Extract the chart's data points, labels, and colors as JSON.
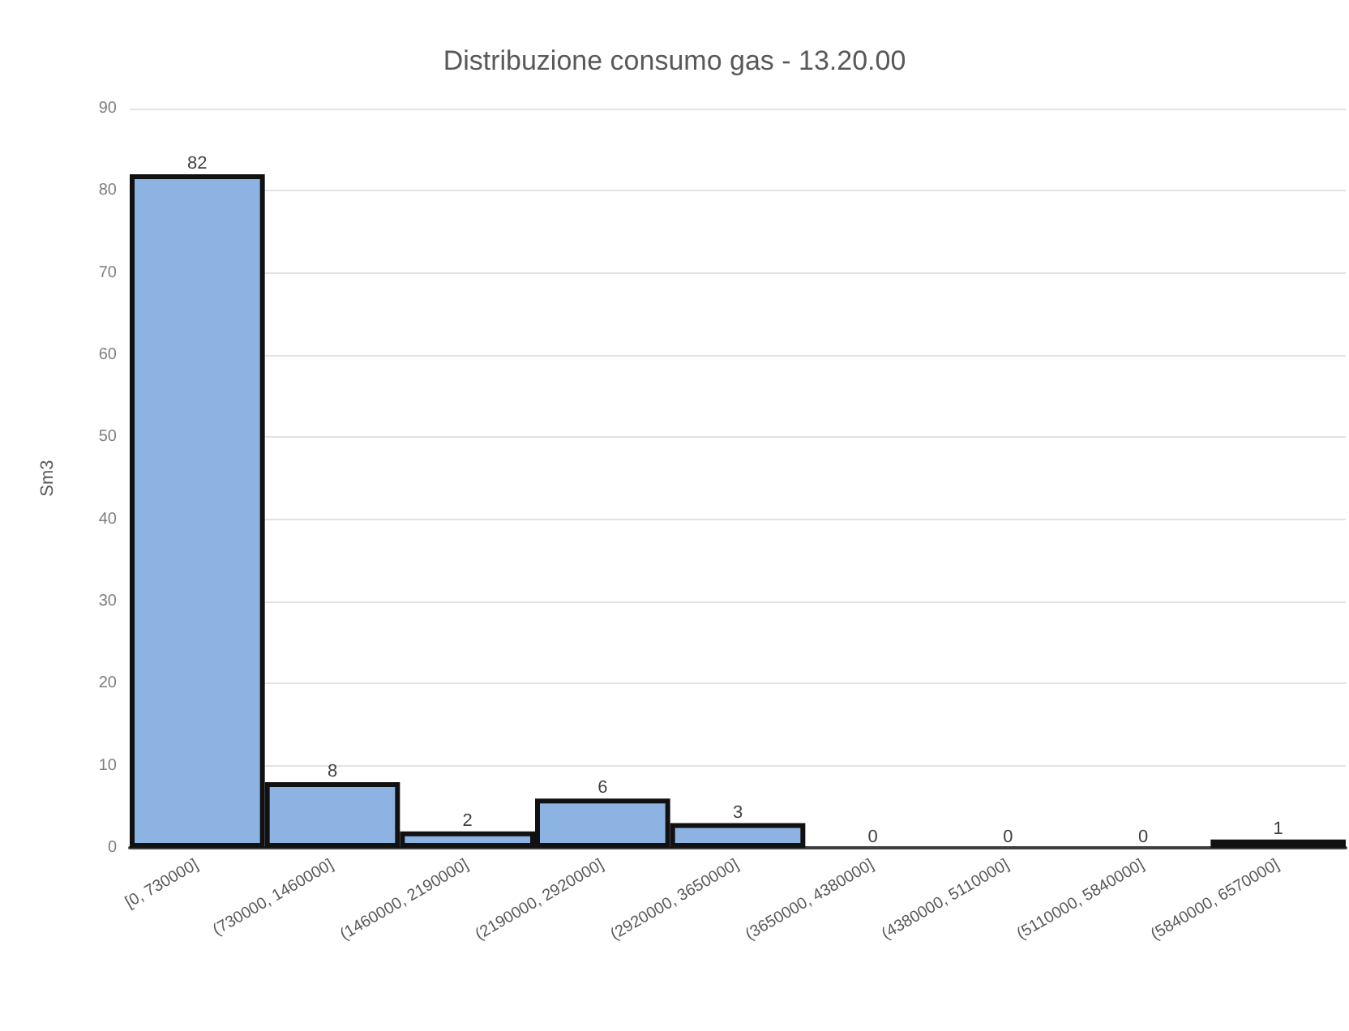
{
  "chart_data": {
    "type": "bar",
    "title": "Distribuzione consumo gas - 13.20.00",
    "ylabel": "Sm3",
    "categories": [
      "[0, 730000]",
      "(730000, 1460000]",
      "(1460000, 2190000]",
      "(2190000, 2920000]",
      "(2920000, 3650000]",
      "(3650000, 4380000]",
      "(4380000, 5110000]",
      "(5110000, 5840000]",
      "(5840000, 6570000]"
    ],
    "values": [
      82,
      8,
      2,
      6,
      3,
      0,
      0,
      0,
      1
    ],
    "color": "#8db3e2",
    "ylim": [
      0,
      90
    ],
    "yticks": [
      0,
      10,
      20,
      30,
      40,
      50,
      60,
      70,
      80,
      90
    ],
    "grid": "y",
    "data_labels": true
  }
}
